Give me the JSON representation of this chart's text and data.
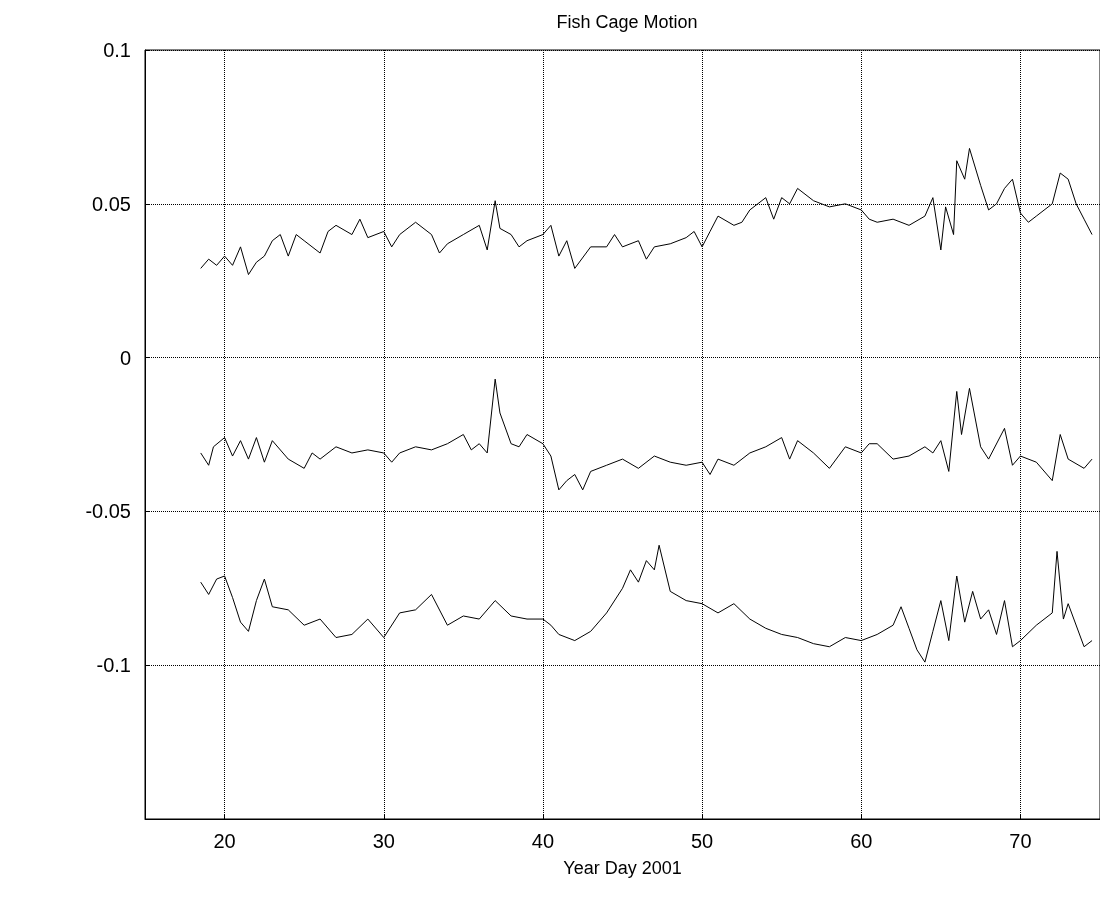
{
  "chart_data": {
    "type": "line",
    "title": "Fish Cage Motion",
    "xlabel": "Year Day 2001",
    "xlim": [
      15,
      75
    ],
    "xticks": [
      20,
      30,
      40,
      50,
      60,
      70
    ],
    "ylim": [
      -0.15,
      0.1
    ],
    "yticks": [
      {
        "value": -0.15,
        "label": null
      },
      -0.1,
      -0.05,
      0,
      0.05,
      0.1
    ],
    "grid": true,
    "marker": "none",
    "line_style": "solid",
    "series": [
      {
        "color": "#000000",
        "x": [
          18.5,
          19,
          19.5,
          20,
          20.5,
          21,
          21.5,
          22,
          22.5,
          23,
          23.5,
          24,
          24.5,
          25,
          26,
          26.5,
          27,
          28,
          28.5,
          29,
          30,
          30.5,
          31,
          32,
          33,
          33.5,
          34,
          35,
          36,
          36.5,
          37,
          37.3,
          38,
          38.5,
          39,
          40,
          40.5,
          41,
          41.5,
          42,
          43,
          44,
          44.5,
          45,
          46,
          46.5,
          47,
          48,
          49,
          49.5,
          50,
          50.5,
          51,
          52,
          52.5,
          53,
          54,
          54.5,
          55,
          55.5,
          56,
          57,
          58,
          59,
          60,
          60.5,
          61,
          62,
          63,
          64,
          64.5,
          65,
          65.3,
          65.8,
          66,
          66.5,
          66.8,
          67.5,
          68,
          68.5,
          69,
          69.5,
          70,
          70.5,
          71,
          72,
          72.5,
          73,
          73.5,
          74,
          74.5
        ],
        "values": [
          0.029,
          0.032,
          0.03,
          0.033,
          0.03,
          0.036,
          0.027,
          0.031,
          0.033,
          0.038,
          0.04,
          0.033,
          0.04,
          0.038,
          0.034,
          0.041,
          0.043,
          0.04,
          0.045,
          0.039,
          0.041,
          0.036,
          0.04,
          0.044,
          0.04,
          0.034,
          0.037,
          0.04,
          0.043,
          0.035,
          0.051,
          0.042,
          0.04,
          0.036,
          0.038,
          0.04,
          0.043,
          0.033,
          0.038,
          0.029,
          0.036,
          0.036,
          0.04,
          0.036,
          0.038,
          0.032,
          0.036,
          0.037,
          0.039,
          0.041,
          0.036,
          0.041,
          0.046,
          0.043,
          0.044,
          0.048,
          0.052,
          0.045,
          0.052,
          0.05,
          0.055,
          0.051,
          0.049,
          0.05,
          0.048,
          0.045,
          0.044,
          0.045,
          0.043,
          0.046,
          0.052,
          0.035,
          0.049,
          0.04,
          0.064,
          0.058,
          0.068,
          0.056,
          0.048,
          0.05,
          0.055,
          0.058,
          0.047,
          0.044,
          0.046,
          0.05,
          0.06,
          0.058,
          0.05,
          0.045,
          0.04
        ]
      },
      {
        "color": "#000000",
        "x": [
          18.5,
          19,
          19.3,
          20,
          20.5,
          21,
          21.5,
          22,
          22.5,
          23,
          24,
          25,
          25.5,
          26,
          27,
          28,
          29,
          30,
          30.5,
          31,
          32,
          33,
          34,
          35,
          35.5,
          36,
          36.5,
          37,
          37.3,
          38,
          38.5,
          39,
          40,
          40.5,
          41,
          41.5,
          42,
          42.5,
          43,
          44,
          45,
          46,
          47,
          48,
          49,
          50,
          50.5,
          51,
          52,
          53,
          54,
          55,
          55.5,
          56,
          57,
          58,
          59,
          60,
          60.5,
          61,
          62,
          63,
          64,
          64.5,
          65,
          65.5,
          66,
          66.3,
          66.8,
          67.5,
          68,
          69,
          69.5,
          70,
          71,
          72,
          72.5,
          73,
          74,
          74.5
        ],
        "values": [
          -0.031,
          -0.035,
          -0.029,
          -0.026,
          -0.032,
          -0.027,
          -0.033,
          -0.026,
          -0.034,
          -0.027,
          -0.033,
          -0.036,
          -0.031,
          -0.033,
          -0.029,
          -0.031,
          -0.03,
          -0.031,
          -0.034,
          -0.031,
          -0.029,
          -0.03,
          -0.028,
          -0.025,
          -0.03,
          -0.028,
          -0.031,
          -0.007,
          -0.018,
          -0.028,
          -0.029,
          -0.025,
          -0.028,
          -0.032,
          -0.043,
          -0.04,
          -0.038,
          -0.043,
          -0.037,
          -0.035,
          -0.033,
          -0.036,
          -0.032,
          -0.034,
          -0.035,
          -0.034,
          -0.038,
          -0.033,
          -0.035,
          -0.031,
          -0.029,
          -0.026,
          -0.033,
          -0.027,
          -0.031,
          -0.036,
          -0.029,
          -0.031,
          -0.028,
          -0.028,
          -0.033,
          -0.032,
          -0.029,
          -0.031,
          -0.027,
          -0.037,
          -0.011,
          -0.025,
          -0.01,
          -0.029,
          -0.033,
          -0.023,
          -0.035,
          -0.032,
          -0.034,
          -0.04,
          -0.025,
          -0.033,
          -0.036,
          -0.033
        ]
      },
      {
        "color": "#000000",
        "x": [
          18.5,
          19,
          19.5,
          20,
          20.5,
          21,
          21.5,
          22,
          22.5,
          23,
          24,
          25,
          26,
          27,
          28,
          29,
          30,
          31,
          32,
          33,
          34,
          35,
          36,
          37,
          38,
          39,
          40,
          40.5,
          41,
          42,
          43,
          44,
          45,
          45.5,
          46,
          46.5,
          47,
          47.3,
          48,
          49,
          50,
          51,
          52,
          53,
          54,
          55,
          56,
          57,
          58,
          59,
          60,
          61,
          62,
          62.5,
          63,
          63.5,
          64,
          64.5,
          65,
          65.5,
          66,
          66.5,
          67,
          67.5,
          68,
          68.5,
          69,
          69.5,
          70,
          71,
          72,
          72.3,
          72.7,
          73,
          74,
          74.5
        ],
        "values": [
          -0.073,
          -0.077,
          -0.072,
          -0.071,
          -0.078,
          -0.086,
          -0.089,
          -0.079,
          -0.072,
          -0.081,
          -0.082,
          -0.087,
          -0.085,
          -0.091,
          -0.09,
          -0.085,
          -0.091,
          -0.083,
          -0.082,
          -0.077,
          -0.087,
          -0.084,
          -0.085,
          -0.079,
          -0.084,
          -0.085,
          -0.085,
          -0.087,
          -0.09,
          -0.092,
          -0.089,
          -0.083,
          -0.075,
          -0.069,
          -0.073,
          -0.066,
          -0.069,
          -0.061,
          -0.076,
          -0.079,
          -0.08,
          -0.083,
          -0.08,
          -0.085,
          -0.088,
          -0.09,
          -0.091,
          -0.093,
          -0.094,
          -0.091,
          -0.092,
          -0.09,
          -0.087,
          -0.081,
          -0.088,
          -0.095,
          -0.099,
          -0.089,
          -0.079,
          -0.092,
          -0.071,
          -0.086,
          -0.076,
          -0.085,
          -0.082,
          -0.09,
          -0.079,
          -0.094,
          -0.092,
          -0.087,
          -0.083,
          -0.063,
          -0.085,
          -0.08,
          -0.094,
          -0.092
        ]
      }
    ]
  }
}
